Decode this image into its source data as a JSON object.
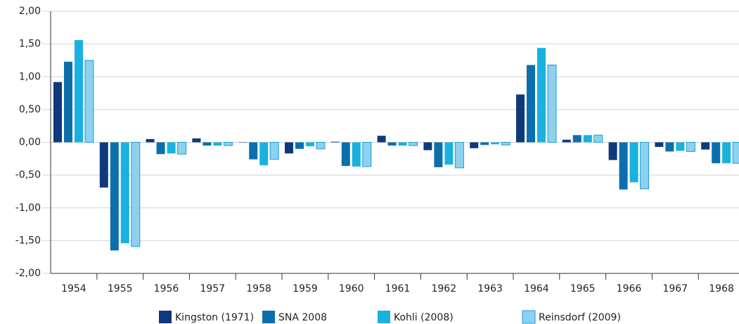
{
  "chart_data": {
    "type": "bar",
    "categories": [
      "1954",
      "1955",
      "1956",
      "1957",
      "1958",
      "1959",
      "1960",
      "1961",
      "1962",
      "1963",
      "1964",
      "1965",
      "1966",
      "1967",
      "1968"
    ],
    "series": [
      {
        "name": "Kingston (1971)",
        "color": "#0e3a7d",
        "values": [
          0.92,
          -0.69,
          0.05,
          0.06,
          0.0,
          -0.17,
          0.01,
          0.1,
          -0.12,
          -0.09,
          0.73,
          0.04,
          -0.27,
          -0.07,
          -0.11
        ]
      },
      {
        "name": "SNA 2008",
        "color": "#0b6fae",
        "values": [
          1.23,
          -1.65,
          -0.18,
          -0.05,
          -0.26,
          -0.1,
          -0.36,
          -0.05,
          -0.38,
          -0.04,
          1.18,
          0.11,
          -0.72,
          -0.14,
          -0.32
        ]
      },
      {
        "name": "Kohli (2008)",
        "color": "#19b1e0",
        "values": [
          1.56,
          -1.54,
          -0.17,
          -0.05,
          -0.35,
          -0.06,
          -0.37,
          -0.05,
          -0.34,
          -0.03,
          1.44,
          0.11,
          -0.61,
          -0.13,
          -0.32
        ]
      },
      {
        "name": "Reinsdorf (2009)",
        "color": "#8dd0ef",
        "values": [
          1.25,
          -1.59,
          -0.18,
          -0.05,
          -0.26,
          -0.1,
          -0.37,
          -0.05,
          -0.39,
          -0.04,
          1.18,
          0.11,
          -0.71,
          -0.14,
          -0.32
        ]
      }
    ],
    "ylim": [
      -2,
      2
    ],
    "yticks": [
      {
        "value": -2,
        "label": "-2,00"
      },
      {
        "value": -1.5,
        "label": "-1,50"
      },
      {
        "value": -1,
        "label": "-1,00"
      },
      {
        "value": -0.5,
        "label": "-0,50"
      },
      {
        "value": 0,
        "label": "0,00"
      },
      {
        "value": 0.5,
        "label": "0,50"
      },
      {
        "value": 1,
        "label": "1,00"
      },
      {
        "value": 1.5,
        "label": "1,50"
      },
      {
        "value": 2,
        "label": "2,00"
      }
    ],
    "grid": true
  }
}
